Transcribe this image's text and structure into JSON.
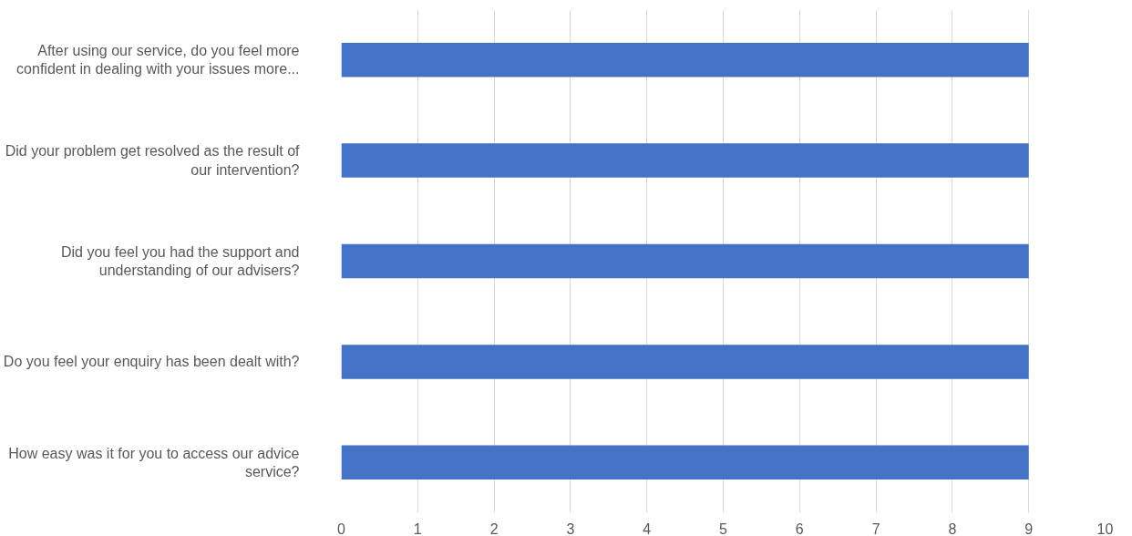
{
  "chart_data": {
    "type": "bar",
    "orientation": "horizontal",
    "categories": [
      "After using our service, do you feel more confident in dealing with your issues more...",
      "Did your problem get resolved as the result of our intervention?",
      "Did you feel you had the support and understanding of our advisers?",
      "Do you feel your enquiry has been dealt with?",
      "How easy was it for you to access our advice service?"
    ],
    "values": [
      9,
      9,
      9,
      9,
      9
    ],
    "color": "#4472c4",
    "xlim": [
      0,
      10
    ],
    "xticks": [
      0,
      1,
      2,
      3,
      4,
      5,
      6,
      7,
      8,
      9,
      10
    ],
    "grid": "x"
  }
}
